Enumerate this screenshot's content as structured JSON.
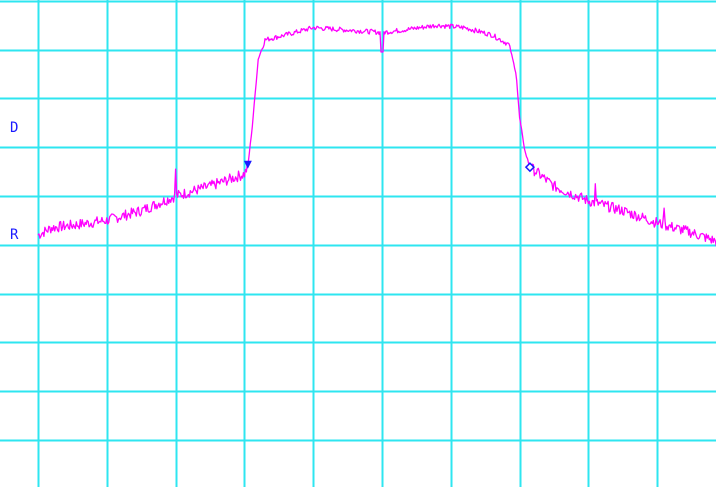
{
  "chart_data": {
    "type": "line",
    "title": "",
    "xlabel": "",
    "ylabel": "",
    "grid": true,
    "grid_divisions": {
      "x": 10,
      "y": 10
    },
    "xlim": [
      0,
      10
    ],
    "ylim": [
      0,
      10
    ],
    "reference_labels": [
      {
        "name": "display-line-label",
        "text": "D",
        "level": 6.4
      },
      {
        "name": "reference-level-label",
        "text": "R",
        "level": 4.2
      }
    ],
    "series": [
      {
        "trace_points": [
          [
            0.0,
            4.2
          ],
          [
            0.2,
            4.35
          ],
          [
            0.5,
            4.4
          ],
          [
            1.0,
            4.5
          ],
          [
            1.5,
            4.7
          ],
          [
            2.0,
            5.0
          ],
          [
            2.5,
            5.2
          ],
          [
            3.0,
            5.45
          ],
          [
            3.05,
            5.6
          ],
          [
            3.12,
            6.5
          ],
          [
            3.2,
            7.8
          ],
          [
            3.3,
            8.2
          ],
          [
            3.6,
            8.3
          ],
          [
            4.0,
            8.45
          ],
          [
            4.5,
            8.4
          ],
          [
            5.0,
            8.35
          ],
          [
            5.3,
            8.4
          ],
          [
            5.8,
            8.5
          ],
          [
            6.2,
            8.45
          ],
          [
            6.6,
            8.3
          ],
          [
            6.85,
            8.1
          ],
          [
            6.95,
            7.5
          ],
          [
            7.0,
            6.6
          ],
          [
            7.08,
            5.9
          ],
          [
            7.15,
            5.6
          ],
          [
            7.5,
            5.2
          ],
          [
            8.0,
            4.9
          ],
          [
            8.5,
            4.7
          ],
          [
            9.0,
            4.45
          ],
          [
            9.5,
            4.25
          ],
          [
            10.0,
            4.0
          ]
        ],
        "dips": [
          [
            5.0,
            7.95
          ]
        ],
        "spikes": [
          [
            2.0,
            5.55
          ],
          [
            8.1,
            5.25
          ],
          [
            9.1,
            4.75
          ]
        ],
        "color": "#ff00ff"
      }
    ],
    "markers": [
      {
        "name": "marker-1-icon",
        "shape": "filled-triangle",
        "x": 3.05,
        "y": 5.6,
        "color": "#1a1aff"
      },
      {
        "name": "marker-2-icon",
        "shape": "open-diamond",
        "x": 7.15,
        "y": 5.55,
        "color": "#1a1aff"
      }
    ],
    "colors": {
      "background": "#ffffff",
      "grid": "#2ee6f0",
      "trace": "#ff00ff",
      "label": "#1a1aff"
    }
  }
}
